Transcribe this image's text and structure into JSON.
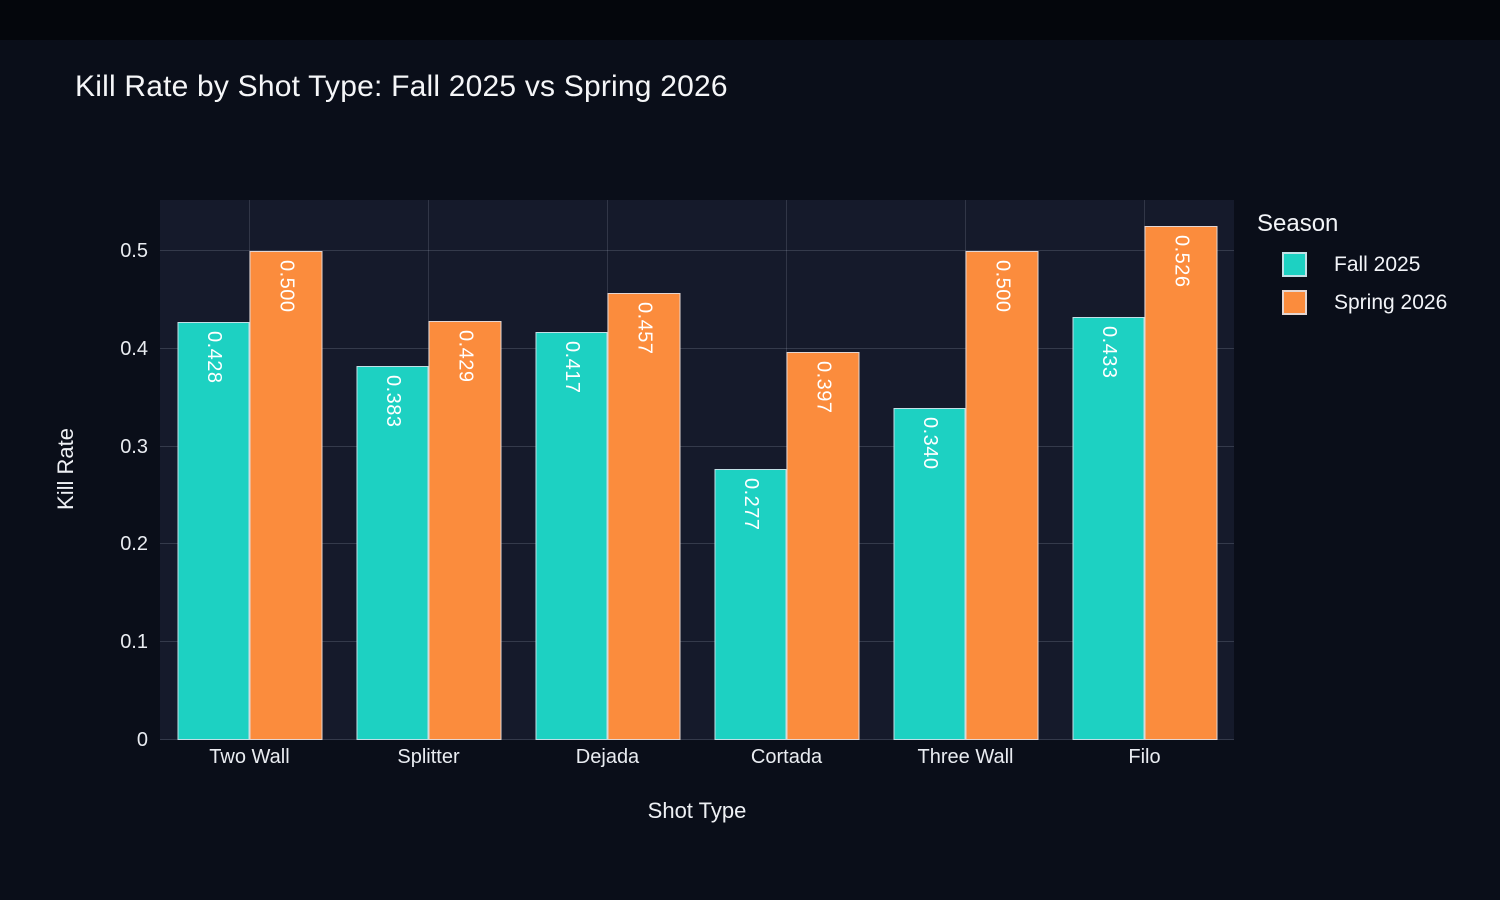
{
  "page": {
    "title": "Kill Rate by Shot Type: Fall 2025 vs Spring 2026",
    "background_color": "#0a0e19",
    "plot_background_color": "#151a2b",
    "text_color": "#f2f4f8"
  },
  "chart_data": {
    "type": "bar",
    "title": "Kill Rate by Shot Type: Fall 2025 vs Spring 2026",
    "xlabel": "Shot Type",
    "ylabel": "Kill Rate",
    "categories": [
      "Two Wall",
      "Splitter",
      "Dejada",
      "Cortada",
      "Three Wall",
      "Filo"
    ],
    "series": [
      {
        "name": "Fall 2025",
        "color": "#1dd1c2",
        "values": [
          0.428,
          0.383,
          0.417,
          0.277,
          0.34,
          0.433
        ],
        "labels": [
          "0.428",
          "0.383",
          "0.417",
          "0.277",
          "0.340",
          "0.433"
        ]
      },
      {
        "name": "Spring 2026",
        "color": "#fb8c3d",
        "values": [
          0.5,
          0.429,
          0.457,
          0.397,
          0.5,
          0.526
        ],
        "labels": [
          "0.500",
          "0.429",
          "0.457",
          "0.397",
          "0.500",
          "0.526"
        ]
      }
    ],
    "legend": {
      "title": "Season",
      "position": "right"
    },
    "ylim": [
      0,
      0.5523
    ],
    "ytick_values": [
      0,
      0.1,
      0.2,
      0.3,
      0.4,
      0.5
    ],
    "ytick_labels": [
      "0",
      "0.1",
      "0.2",
      "0.3",
      "0.4",
      "0.5"
    ],
    "grid": true,
    "bar_value_labels_rotated": true
  }
}
